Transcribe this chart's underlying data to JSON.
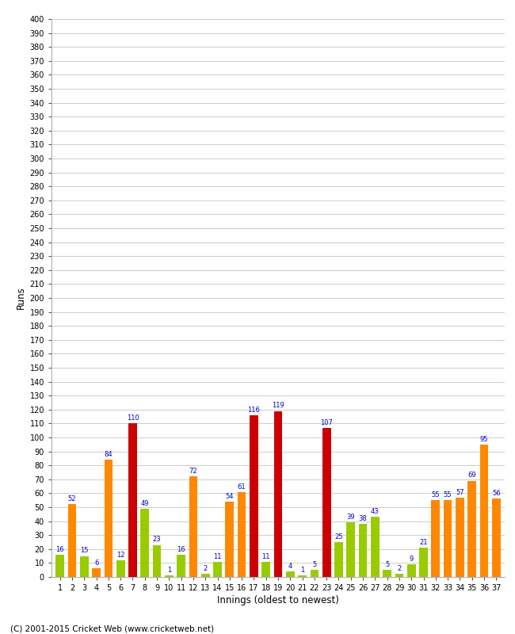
{
  "innings": [
    1,
    2,
    3,
    4,
    5,
    6,
    7,
    8,
    9,
    10,
    11,
    12,
    13,
    14,
    15,
    16,
    17,
    18,
    19,
    20,
    21,
    22,
    23,
    24,
    25,
    26,
    27,
    28,
    29,
    30,
    31,
    32,
    33,
    34,
    35,
    36,
    37
  ],
  "values": [
    16,
    52,
    15,
    6,
    84,
    12,
    110,
    49,
    23,
    1,
    16,
    72,
    2,
    11,
    54,
    61,
    116,
    11,
    119,
    4,
    1,
    5,
    107,
    25,
    39,
    38,
    43,
    5,
    2,
    9,
    21,
    55,
    55,
    57,
    69,
    95,
    56
  ],
  "colors": [
    "green",
    "orange",
    "green",
    "orange",
    "orange",
    "green",
    "red",
    "green",
    "green",
    "green",
    "green",
    "orange",
    "green",
    "green",
    "orange",
    "orange",
    "red",
    "green",
    "red",
    "green",
    "green",
    "green",
    "red",
    "green",
    "green",
    "green",
    "green",
    "green",
    "green",
    "green",
    "green",
    "orange",
    "orange",
    "orange",
    "orange",
    "orange",
    "orange"
  ],
  "xlabel": "Innings (oldest to newest)",
  "ylabel": "Runs",
  "ylim": [
    0,
    400
  ],
  "yticks": [
    0,
    10,
    20,
    30,
    40,
    50,
    60,
    70,
    80,
    90,
    100,
    110,
    120,
    130,
    140,
    150,
    160,
    170,
    180,
    190,
    200,
    210,
    220,
    230,
    240,
    250,
    260,
    270,
    280,
    290,
    300,
    310,
    320,
    330,
    340,
    350,
    360,
    370,
    380,
    390,
    400
  ],
  "bar_color_green": "#99cc00",
  "bar_color_orange": "#ff8800",
  "bar_color_red": "#cc0000",
  "label_color": "#0000cc",
  "bg_color": "#ffffff",
  "grid_color": "#cccccc",
  "footer": "(C) 2001-2015 Cricket Web (www.cricketweb.net)"
}
